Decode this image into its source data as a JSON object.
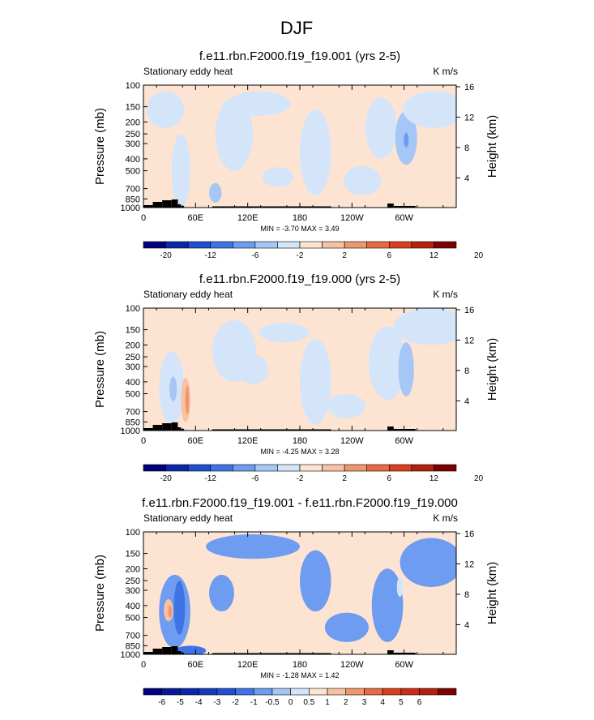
{
  "figure": {
    "title": "DJF"
  },
  "colorbars": {
    "abs": {
      "colors": [
        "#00007f",
        "#0b27a9",
        "#1f4fd1",
        "#3f74e6",
        "#6e9cf0",
        "#a6c6f6",
        "#d4e5fa",
        "#fde4d2",
        "#f8c1a2",
        "#f0966f",
        "#e86a45",
        "#dc3e20",
        "#b4200e",
        "#7f0000"
      ],
      "labels": [
        "-20",
        "-12",
        "-6",
        "-2",
        "2",
        "6",
        "12",
        "20"
      ]
    },
    "diff": {
      "colors": [
        "#00007f",
        "#061894",
        "#0b27a9",
        "#1539be",
        "#1f4fd1",
        "#3f74e6",
        "#6e9cf0",
        "#a6c6f6",
        "#d4e5fa",
        "#fde4d2",
        "#f8c1a2",
        "#f0966f",
        "#e86a45",
        "#dc3e20",
        "#c92d16",
        "#b4200e",
        "#7f0000"
      ],
      "labels": [
        "-6",
        "-5",
        "-4",
        "-3",
        "-2",
        "-1",
        "-0.5",
        "0",
        "0.5",
        "1",
        "2",
        "3",
        "4",
        "5",
        "6"
      ]
    }
  },
  "chart_data": [
    {
      "type": "heatmap",
      "title": "f.e11.rbn.F2000.f19_f19.001 (yrs 2-5)",
      "left_label": "Stationary eddy heat",
      "units": "K m/s",
      "ylabel": "Pressure (mb)",
      "ylabel_right": "Height (km)",
      "y_ticks": [
        "100",
        "150",
        "200",
        "250",
        "300",
        "400",
        "500",
        "700",
        "850",
        "1000"
      ],
      "y_ticks_right": [
        "16",
        "12",
        "8",
        "4"
      ],
      "x_ticks": [
        "0",
        "60E",
        "120E",
        "180",
        "120W",
        "60W"
      ],
      "min_max": "MIN = -3.70  MAX = 3.49",
      "colorbar": "abs"
    },
    {
      "type": "heatmap",
      "title": "f.e11.rbn.F2000.f19_f19.000 (yrs 2-5)",
      "left_label": "Stationary eddy heat",
      "units": "K m/s",
      "ylabel": "Pressure (mb)",
      "ylabel_right": "Height (km)",
      "y_ticks": [
        "100",
        "150",
        "200",
        "250",
        "300",
        "400",
        "500",
        "700",
        "850",
        "1000"
      ],
      "y_ticks_right": [
        "16",
        "12",
        "8",
        "4"
      ],
      "x_ticks": [
        "0",
        "60E",
        "120E",
        "180",
        "120W",
        "60W"
      ],
      "min_max": "MIN = -4.25  MAX = 3.28",
      "colorbar": "abs"
    },
    {
      "type": "heatmap",
      "title": "f.e11.rbn.F2000.f19_f19.001 - f.e11.rbn.F2000.f19_f19.000",
      "left_label": "Stationary eddy heat",
      "units": "K m/s",
      "ylabel": "Pressure (mb)",
      "ylabel_right": "Height (km)",
      "y_ticks": [
        "100",
        "150",
        "200",
        "250",
        "300",
        "400",
        "500",
        "700",
        "850",
        "1000"
      ],
      "y_ticks_right": [
        "16",
        "12",
        "8",
        "4"
      ],
      "x_ticks": [
        "0",
        "60E",
        "120E",
        "180",
        "120W",
        "60W"
      ],
      "min_max": "MIN = -1.28  MAX = 1.42",
      "colorbar": "diff"
    }
  ]
}
